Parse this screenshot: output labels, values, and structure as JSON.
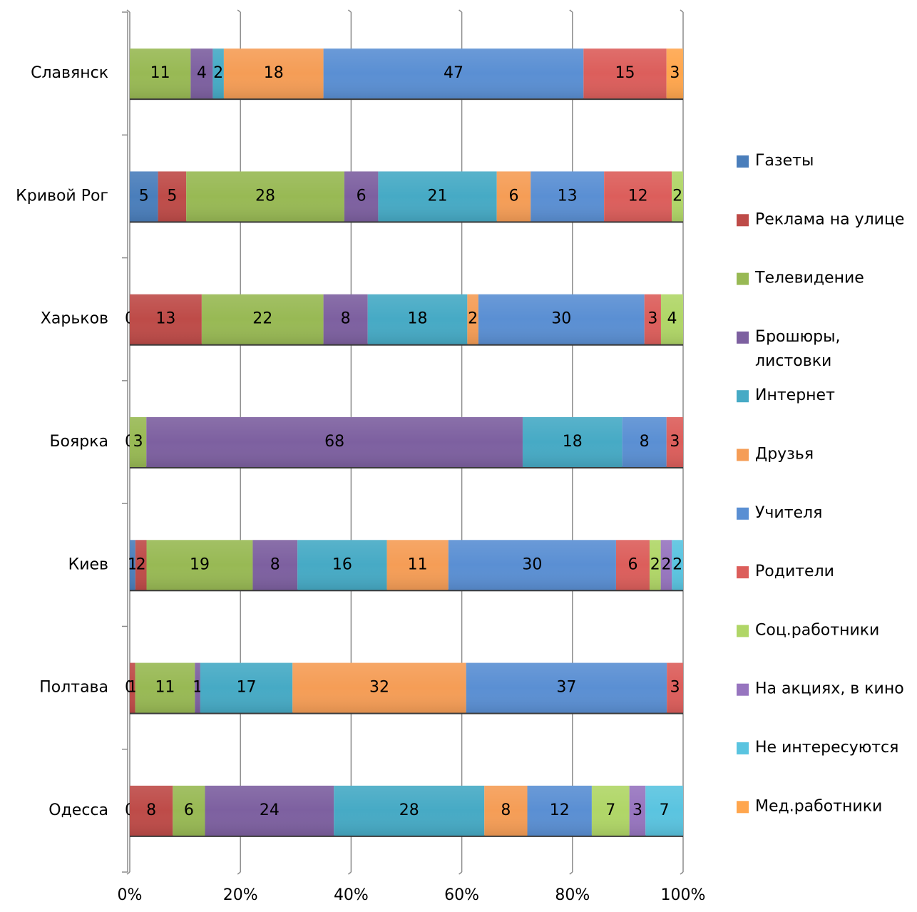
{
  "chart_data": {
    "type": "bar",
    "orientation": "horizontal",
    "stacked": "percent",
    "grid": true,
    "legend_position": "right",
    "categories": [
      "Одесса",
      "Полтава",
      "Киев",
      "Боярка",
      "Харьков",
      "Кривой Рог",
      "Славянск"
    ],
    "x_ticks": [
      "0%",
      "20%",
      "40%",
      "60%",
      "80%",
      "100%"
    ],
    "xlim": [
      0,
      100
    ],
    "series": [
      {
        "name": "Газеты",
        "color": "#4A7EBB",
        "values": [
          0,
          0,
          1,
          0,
          0,
          5,
          null
        ]
      },
      {
        "name": "Реклама на улице",
        "color": "#BE4B48",
        "values": [
          8,
          1,
          2,
          null,
          13,
          5,
          null
        ]
      },
      {
        "name": "Телевидение",
        "color": "#98B954",
        "values": [
          6,
          11,
          19,
          3,
          22,
          28,
          11
        ]
      },
      {
        "name": "Брошюры, листовки",
        "legend_lines": [
          "Брошюры,",
          "листовки"
        ],
        "color": "#7D60A0",
        "values": [
          24,
          1,
          8,
          68,
          8,
          6,
          4
        ]
      },
      {
        "name": "Интернет",
        "color": "#46AAC5",
        "values": [
          28,
          17,
          16,
          18,
          18,
          21,
          2
        ]
      },
      {
        "name": "Друзья",
        "color": "#F59D56",
        "values": [
          8,
          32,
          11,
          null,
          2,
          6,
          18
        ]
      },
      {
        "name": "Учителя",
        "color": "#5A8FD3",
        "values": [
          12,
          37,
          30,
          8,
          30,
          13,
          47
        ]
      },
      {
        "name": "Родители",
        "color": "#DC5E5B",
        "values": [
          null,
          3,
          6,
          3,
          3,
          12,
          15
        ]
      },
      {
        "name": "Соц.работники",
        "color": "#B0D667",
        "values": [
          7,
          null,
          2,
          null,
          4,
          2,
          null
        ]
      },
      {
        "name": "На акциях, в кино",
        "color": "#9775BF",
        "values": [
          3,
          null,
          2,
          null,
          null,
          null,
          null
        ]
      },
      {
        "name": "Не интересуются",
        "color": "#5AC4E0",
        "values": [
          7,
          null,
          2,
          null,
          null,
          null,
          null
        ]
      },
      {
        "name": "Мед.работники",
        "color": "#FFA64D",
        "values": [
          null,
          null,
          null,
          null,
          null,
          null,
          3
        ]
      }
    ]
  }
}
